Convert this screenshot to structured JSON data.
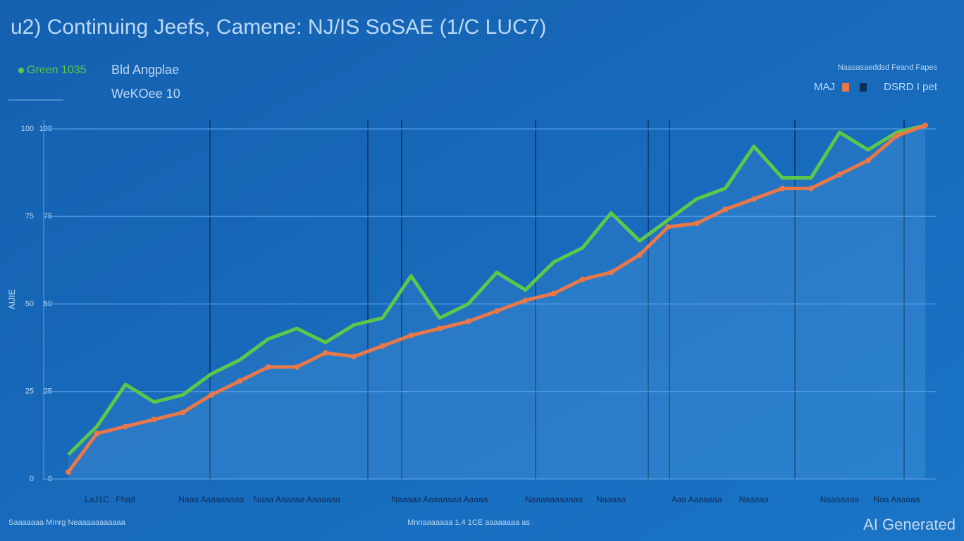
{
  "chart_data": {
    "type": "line",
    "title": "u2) Continuing Jeefs, Camene: NJ/IS SoSAE (1/C LUC7)",
    "legend_notes": [
      "Bld Angplae",
      "WeKOee 10",
      "Naasasaeddsd Feand Fapes",
      "DSRD I pet"
    ],
    "y_label": "AIJIE",
    "footer": [
      "Saaaaaaa Mmrg Neaaaaaaaaaaa",
      "Mnnaaaaaaa 1.4 1CE aaaaaaaa as",
      "AI Generated"
    ],
    "categories": [
      null,
      "LaJ1C",
      "Fhad",
      null,
      null,
      "Naaa Aaaaaaaaa",
      null,
      null,
      "Naaa Aaaaaa Aaaaaaa",
      null,
      null,
      null,
      null,
      "Naaaaa Aaaaaaaa Aaaaa",
      null,
      null,
      null,
      "Naaaaaaaaaaa",
      null,
      "Naaaaa",
      null,
      null,
      "Aaa Aaaaaaa",
      null,
      "Naaaaa",
      null,
      null,
      "Naaaaaaa",
      null,
      "Naa Aaaaaa",
      null
    ],
    "series": [
      {
        "name": "Green 1035",
        "color": "#5cc74a",
        "values": [
          7,
          15,
          27,
          22,
          24,
          30,
          34,
          40,
          43,
          39,
          44,
          46,
          58,
          46,
          50,
          59,
          54,
          62,
          66,
          76,
          68,
          74,
          80,
          83,
          95,
          86,
          86,
          99,
          94,
          99,
          101
        ]
      },
      {
        "name": "MAJ",
        "color": "#e8784a",
        "values": [
          2,
          13,
          15,
          17,
          19,
          24,
          28,
          32,
          32,
          36,
          35,
          38,
          41,
          43,
          45,
          48,
          51,
          53,
          57,
          59,
          64,
          72,
          73,
          77,
          80,
          83,
          83,
          87,
          91,
          98,
          101
        ]
      }
    ],
    "ylim": [
      0,
      102
    ],
    "yticks": [
      0,
      25,
      50,
      75,
      100
    ],
    "grid": true,
    "legend": "top-left"
  }
}
